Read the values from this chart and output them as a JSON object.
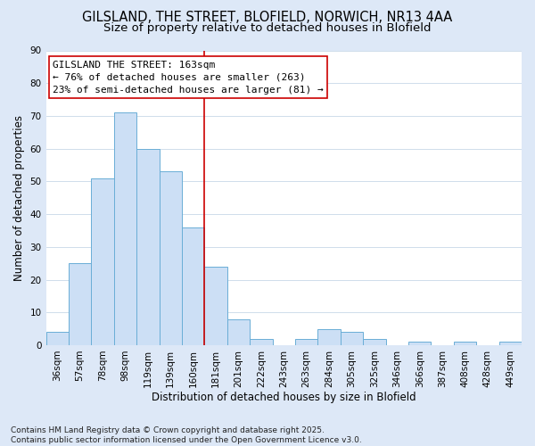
{
  "title": "GILSLAND, THE STREET, BLOFIELD, NORWICH, NR13 4AA",
  "subtitle": "Size of property relative to detached houses in Blofield",
  "xlabel": "Distribution of detached houses by size in Blofield",
  "ylabel": "Number of detached properties",
  "bin_labels": [
    "36sqm",
    "57sqm",
    "78sqm",
    "98sqm",
    "119sqm",
    "139sqm",
    "160sqm",
    "181sqm",
    "201sqm",
    "222sqm",
    "243sqm",
    "263sqm",
    "284sqm",
    "305sqm",
    "325sqm",
    "346sqm",
    "366sqm",
    "387sqm",
    "408sqm",
    "428sqm",
    "449sqm"
  ],
  "bar_heights": [
    4,
    25,
    51,
    71,
    60,
    53,
    36,
    24,
    8,
    2,
    0,
    2,
    5,
    4,
    2,
    0,
    1,
    0,
    1,
    0,
    1
  ],
  "bar_color": "#ccdff5",
  "bar_edge_color": "#6aaed6",
  "vline_x": 6.5,
  "vline_color": "#cc0000",
  "annotation_title": "GILSLAND THE STREET: 163sqm",
  "annotation_line1": "← 76% of detached houses are smaller (263)",
  "annotation_line2": "23% of semi-detached houses are larger (81) →",
  "annotation_box_facecolor": "#ffffff",
  "annotation_box_edgecolor": "#cc0000",
  "ylim": [
    0,
    90
  ],
  "yticks": [
    0,
    10,
    20,
    30,
    40,
    50,
    60,
    70,
    80,
    90
  ],
  "footer_line1": "Contains HM Land Registry data © Crown copyright and database right 2025.",
  "footer_line2": "Contains public sector information licensed under the Open Government Licence v3.0.",
  "bg_color": "#dde8f7",
  "plot_bg_color": "#ffffff",
  "title_fontsize": 10.5,
  "subtitle_fontsize": 9.5,
  "axis_label_fontsize": 8.5,
  "tick_fontsize": 7.5,
  "annotation_fontsize": 8,
  "footer_fontsize": 6.5,
  "grid_color": "#c8d8e8"
}
